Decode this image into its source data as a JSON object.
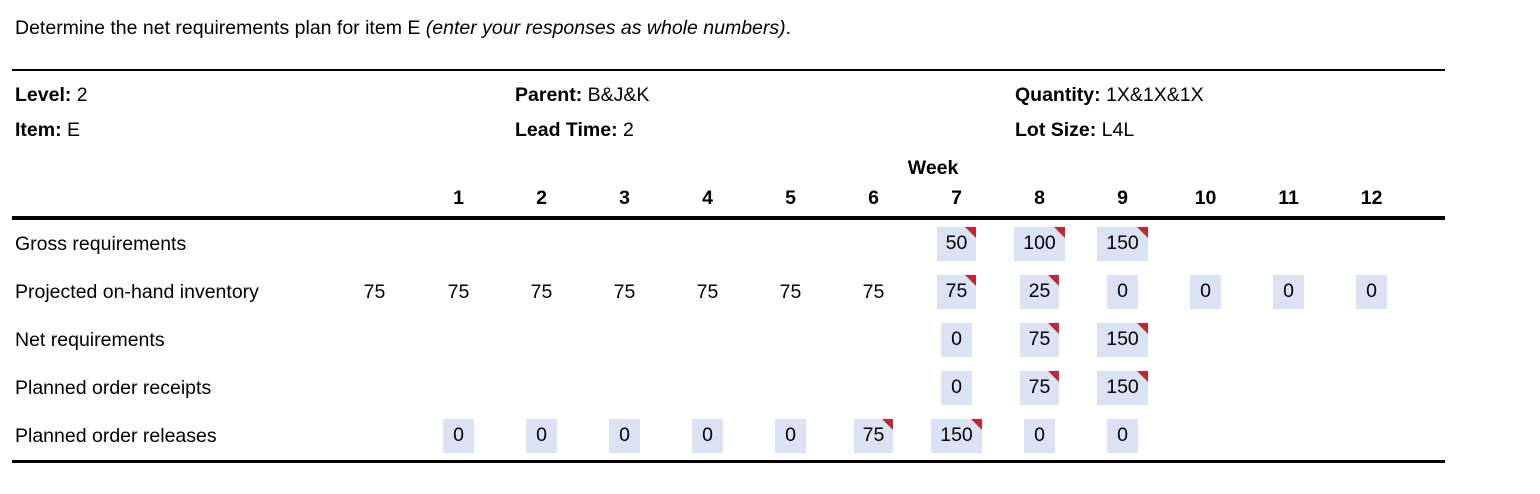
{
  "title": {
    "text": "Determine the net requirements plan for item E ",
    "italic_note": "(enter your responses as whole numbers)",
    "period": "."
  },
  "header": {
    "fields": [
      {
        "label": "Level:",
        "value": "2"
      },
      {
        "label": "Parent:",
        "value": "B&J&K"
      },
      {
        "label": "Quantity:",
        "value": "1X&1X&1X"
      },
      {
        "label": "Item:",
        "value": "E"
      },
      {
        "label": "Lead Time:",
        "value": "2"
      },
      {
        "label": "Lot Size:",
        "value": "L4L"
      }
    ]
  },
  "table": {
    "week_header_label": "Week",
    "week_numbers": [
      "1",
      "2",
      "3",
      "4",
      "5",
      "6",
      "7",
      "8",
      "9",
      "10",
      "11",
      "12"
    ],
    "rows": [
      {
        "label": "Gross requirements",
        "initial": null,
        "cells": [
          null,
          null,
          null,
          null,
          null,
          null,
          {
            "value": "50",
            "highlight": true,
            "flag": true
          },
          {
            "value": "100",
            "highlight": true,
            "flag": true
          },
          {
            "value": "150",
            "highlight": true,
            "flag": true
          },
          null,
          null,
          null
        ]
      },
      {
        "label": "Projected on-hand inventory",
        "initial": {
          "value": "75",
          "highlight": false,
          "flag": false
        },
        "cells": [
          {
            "value": "75",
            "highlight": false,
            "flag": false
          },
          {
            "value": "75",
            "highlight": false,
            "flag": false
          },
          {
            "value": "75",
            "highlight": false,
            "flag": false
          },
          {
            "value": "75",
            "highlight": false,
            "flag": false
          },
          {
            "value": "75",
            "highlight": false,
            "flag": false
          },
          {
            "value": "75",
            "highlight": false,
            "flag": false
          },
          {
            "value": "75",
            "highlight": true,
            "flag": true
          },
          {
            "value": "25",
            "highlight": true,
            "flag": true
          },
          {
            "value": "0",
            "highlight": true,
            "flag": false
          },
          {
            "value": "0",
            "highlight": true,
            "flag": false
          },
          {
            "value": "0",
            "highlight": true,
            "flag": false
          },
          {
            "value": "0",
            "highlight": true,
            "flag": false
          }
        ]
      },
      {
        "label": "Net requirements",
        "initial": null,
        "cells": [
          null,
          null,
          null,
          null,
          null,
          null,
          {
            "value": "0",
            "highlight": true,
            "flag": false
          },
          {
            "value": "75",
            "highlight": true,
            "flag": true
          },
          {
            "value": "150",
            "highlight": true,
            "flag": true
          },
          null,
          null,
          null
        ]
      },
      {
        "label": "Planned order receipts",
        "initial": null,
        "cells": [
          null,
          null,
          null,
          null,
          null,
          null,
          {
            "value": "0",
            "highlight": true,
            "flag": false
          },
          {
            "value": "75",
            "highlight": true,
            "flag": true
          },
          {
            "value": "150",
            "highlight": true,
            "flag": true
          },
          null,
          null,
          null
        ]
      },
      {
        "label": "Planned order releases",
        "initial": null,
        "cells": [
          {
            "value": "0",
            "highlight": true,
            "flag": false
          },
          {
            "value": "0",
            "highlight": true,
            "flag": false
          },
          {
            "value": "0",
            "highlight": true,
            "flag": false
          },
          {
            "value": "0",
            "highlight": true,
            "flag": false
          },
          {
            "value": "0",
            "highlight": true,
            "flag": false
          },
          {
            "value": "75",
            "highlight": true,
            "flag": true
          },
          {
            "value": "150",
            "highlight": true,
            "flag": true
          },
          {
            "value": "0",
            "highlight": true,
            "flag": false
          },
          {
            "value": "0",
            "highlight": true,
            "flag": false
          },
          null,
          null,
          null
        ]
      }
    ]
  },
  "colors": {
    "cell_highlight_bg": "#dbe2f3",
    "flag_red": "#c0282f",
    "text": "#000000",
    "background": "#ffffff"
  }
}
